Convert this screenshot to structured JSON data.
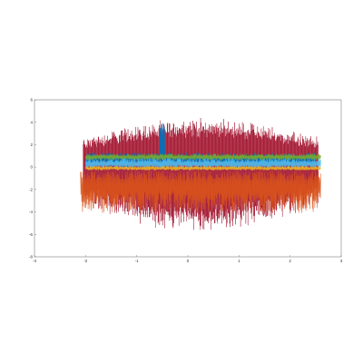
{
  "chart_data": {
    "type": "line",
    "title": "",
    "xlabel": "",
    "ylabel": "",
    "xlim": [
      -3,
      3
    ],
    "ylim": [
      -8,
      6
    ],
    "x_ticks": [
      {
        "value": -3,
        "label": "-3"
      },
      {
        "value": -2,
        "label": "-2"
      },
      {
        "value": -1,
        "label": "-1"
      },
      {
        "value": 0,
        "label": "0"
      },
      {
        "value": 1,
        "label": "1"
      },
      {
        "value": 2,
        "label": "2"
      },
      {
        "value": 3,
        "label": "3"
      }
    ],
    "y_ticks": [
      {
        "value": 6,
        "label": "6"
      },
      {
        "value": 4,
        "label": "4"
      },
      {
        "value": 2,
        "label": "2"
      },
      {
        "value": 0,
        "label": "0"
      },
      {
        "value": -2,
        "label": "-2"
      },
      {
        "value": -4,
        "label": "-4"
      },
      {
        "value": -6,
        "label": "-6"
      },
      {
        "value": -8,
        "label": "-8"
      }
    ],
    "grid": false,
    "legend": "none",
    "series": [
      {
        "color": "#a2142f",
        "x_range": [
          -2.05,
          2.55
        ],
        "center": 0.3,
        "amp_upper": 3.7,
        "amp_lower": 5.6,
        "style": "dense-oscillation"
      },
      {
        "color": "#d95319",
        "x_range": [
          -2.1,
          2.6
        ],
        "center": -1.5,
        "amp_upper": 1.2,
        "amp_lower": 2.6,
        "style": "band"
      },
      {
        "color": "#0072bd",
        "x_range": [
          -2.0,
          2.5
        ],
        "center": 0.6,
        "amp_upper": 0.7,
        "amp_lower": 0.4,
        "style": "band",
        "spike": {
          "x": -0.5,
          "y": 4.2
        }
      },
      {
        "color": "#77ac30",
        "x_range": [
          -2.0,
          2.6
        ],
        "center": 0.9,
        "amp_upper": 0.3,
        "amp_lower": 0.3,
        "style": "band"
      },
      {
        "color": "#4dbeee",
        "x_range": [
          -2.0,
          2.6
        ],
        "center": 0.3,
        "amp_upper": 0.5,
        "amp_lower": 0.5,
        "style": "band"
      },
      {
        "color": "#edb120",
        "x_range": [
          -2.0,
          2.6
        ],
        "center": -0.1,
        "amp_upper": 0.2,
        "amp_lower": 0.2,
        "style": "band"
      }
    ]
  }
}
